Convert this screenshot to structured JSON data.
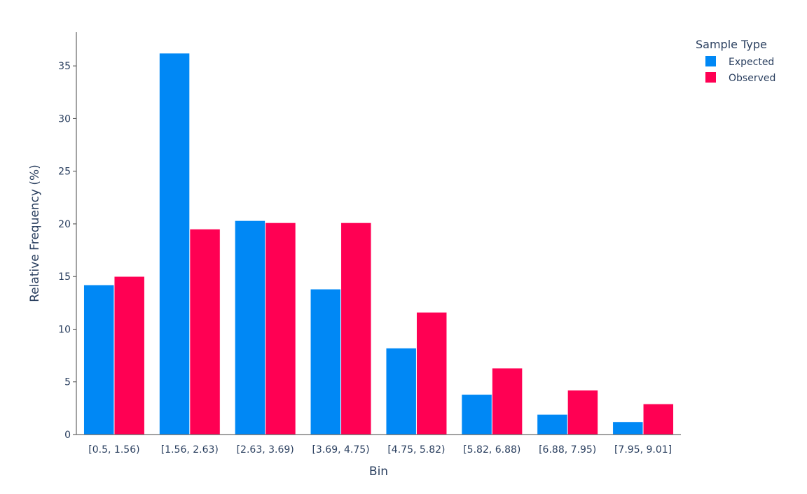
{
  "chart_data": {
    "type": "bar",
    "categories": [
      "[0.5, 1.56)",
      "[1.56, 2.63)",
      "[2.63, 3.69)",
      "[3.69, 4.75)",
      "[4.75, 5.82)",
      "[5.82, 6.88)",
      "[6.88, 7.95)",
      "[7.95, 9.01]"
    ],
    "series": [
      {
        "name": "Expected",
        "color": "#0088f5",
        "values": [
          14.2,
          36.2,
          20.3,
          13.8,
          8.2,
          3.8,
          1.9,
          1.2
        ]
      },
      {
        "name": "Observed",
        "color": "#ff0053",
        "values": [
          15.0,
          19.5,
          20.1,
          20.1,
          11.6,
          6.3,
          4.2,
          2.9
        ]
      }
    ],
    "xlabel": "Bin",
    "ylabel": "Relative Frequency (%)",
    "yticks": [
      0,
      5,
      10,
      15,
      20,
      25,
      30,
      35
    ],
    "ylim": [
      0,
      38.2
    ],
    "legend": {
      "title": "Sample Type",
      "placement": "top-right"
    },
    "grid": false
  }
}
